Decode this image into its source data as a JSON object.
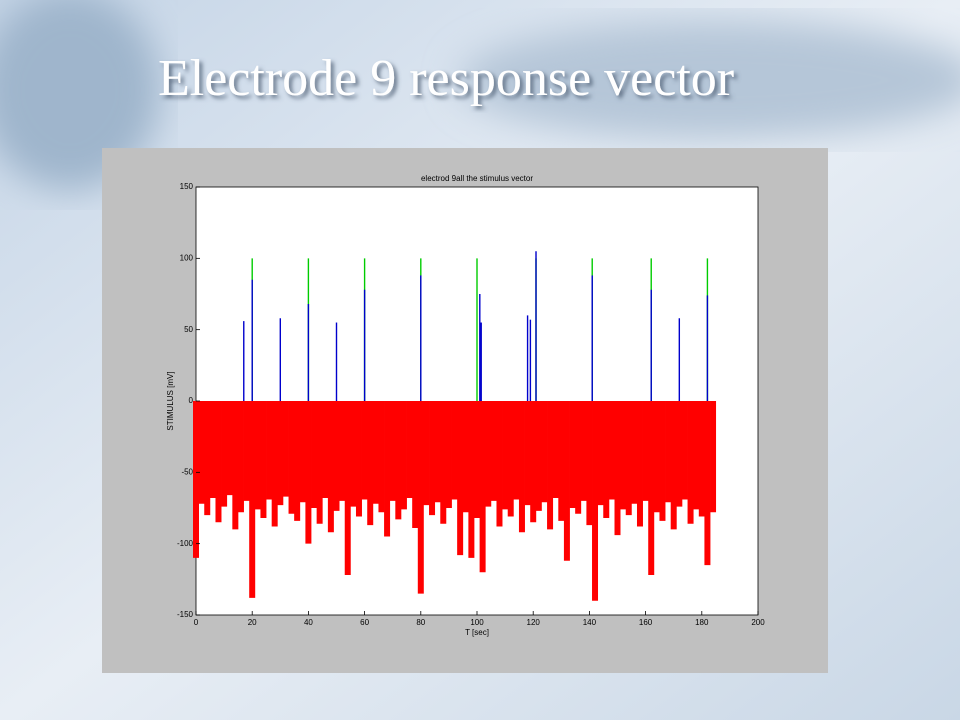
{
  "slide_title": "Electrode 9 response vector",
  "chart_data": {
    "type": "stem",
    "title": "electrod 9all the stimulus vector",
    "x_label": "T [sec]",
    "y_label": "STIMULUS [mV]",
    "xlim": [
      0,
      200
    ],
    "xticks": [
      0,
      20,
      40,
      60,
      80,
      100,
      120,
      140,
      160,
      180,
      200
    ],
    "ylim": [
      -150,
      150
    ],
    "yticks": [
      -150,
      -100,
      -50,
      0,
      50,
      100,
      150
    ],
    "series": [
      {
        "color": "#ff0000",
        "x": [
          0,
          2,
          4,
          6,
          8,
          10,
          12,
          14,
          16,
          18,
          20,
          22,
          24,
          26,
          28,
          30,
          32,
          34,
          36,
          38,
          40,
          42,
          44,
          46,
          48,
          50,
          52,
          54,
          56,
          58,
          60,
          62,
          64,
          66,
          68,
          70,
          72,
          74,
          76,
          78,
          80,
          82,
          84,
          86,
          88,
          90,
          92,
          94,
          96,
          98,
          100,
          102,
          104,
          106,
          108,
          110,
          112,
          114,
          116,
          118,
          120,
          122,
          124,
          126,
          128,
          130,
          132,
          134,
          136,
          138,
          140,
          142,
          144,
          146,
          148,
          150,
          152,
          154,
          156,
          158,
          160,
          162,
          164,
          166,
          168,
          170,
          172,
          174,
          176,
          178,
          180,
          182,
          184
        ],
        "values": [
          -110,
          -72,
          -80,
          -68,
          -85,
          -74,
          -66,
          -90,
          -78,
          -70,
          -138,
          -76,
          -82,
          -69,
          -88,
          -73,
          -67,
          -79,
          -84,
          -71,
          -100,
          -75,
          -86,
          -68,
          -92,
          -77,
          -70,
          -122,
          -74,
          -81,
          -69,
          -87,
          -72,
          -78,
          -95,
          -70,
          -83,
          -76,
          -68,
          -89,
          -135,
          -73,
          -80,
          -71,
          -86,
          -75,
          -69,
          -108,
          -78,
          -110,
          -82,
          -120,
          -74,
          -70,
          -88,
          -76,
          -81,
          -69,
          -92,
          -73,
          -85,
          -77,
          -71,
          -90,
          -68,
          -84,
          -112,
          -75,
          -79,
          -70,
          -87,
          -140,
          -73,
          -82,
          -69,
          -94,
          -76,
          -80,
          -72,
          -88,
          -70,
          -122,
          -78,
          -84,
          -71,
          -90,
          -74,
          -69,
          -86,
          -76,
          -81,
          -115,
          -78
        ]
      },
      {
        "color": "#00cc00",
        "x": [
          20,
          40,
          60,
          80,
          100,
          121,
          141,
          162,
          182
        ],
        "values": [
          100,
          100,
          100,
          100,
          100,
          100,
          100,
          100,
          100
        ]
      },
      {
        "color": "#0000cc",
        "x": [
          17,
          20,
          30,
          40,
          50,
          60,
          80,
          101,
          101.5,
          118,
          119,
          121,
          141,
          162,
          172,
          182
        ],
        "values": [
          56,
          85,
          58,
          68,
          55,
          78,
          88,
          75,
          55,
          60,
          57,
          105,
          88,
          78,
          58,
          74
        ]
      }
    ]
  }
}
